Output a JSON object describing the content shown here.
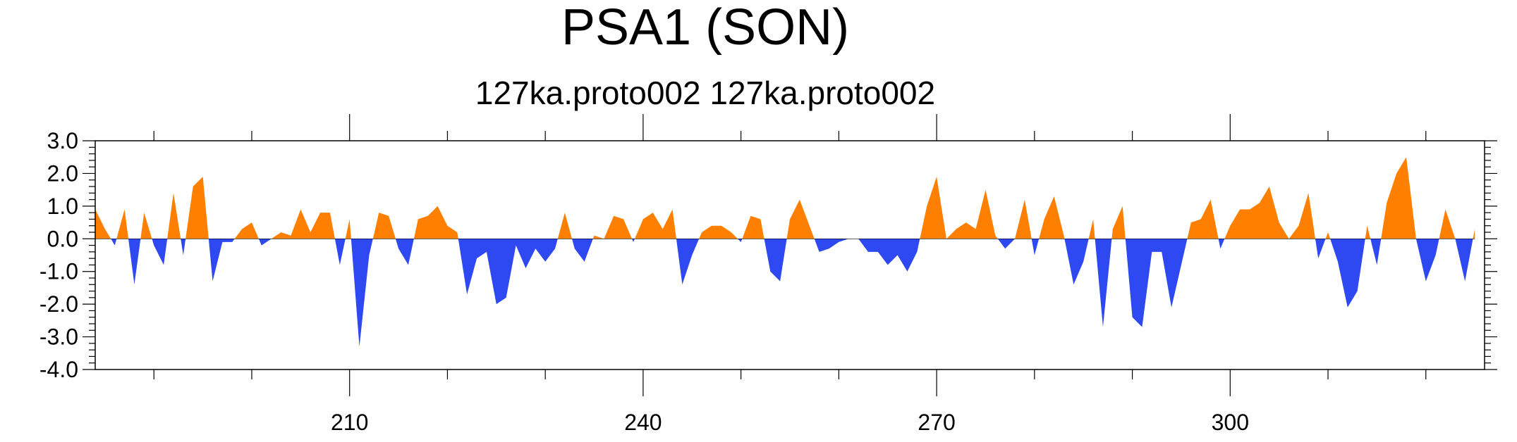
{
  "chart_data": {
    "type": "area",
    "title": "PSA1 (SON)",
    "subtitle": "127ka.proto002  127ka.proto002",
    "xlabel": "",
    "ylabel": "",
    "xlim": [
      184,
      326
    ],
    "ylim": [
      -4.0,
      3.0
    ],
    "x_ticks": [
      210,
      240,
      270,
      300
    ],
    "x_tick_labels": [
      "210",
      "240",
      "270",
      "300"
    ],
    "y_ticks": [
      3.0,
      2.0,
      1.0,
      0.0,
      -1.0,
      -2.0,
      -3.0,
      -4.0
    ],
    "y_tick_labels": [
      "3.0",
      "2.0",
      "1.0",
      "0.0",
      "-1.0",
      "-2.0",
      "-3.0",
      "-4.0"
    ],
    "positive_color": "#ff8000",
    "negative_color": "#2f49f2",
    "x_start": 184,
    "x_step": 1,
    "values": [
      0.9,
      0.3,
      -0.2,
      0.9,
      -1.4,
      0.8,
      -0.2,
      -0.8,
      1.4,
      -0.5,
      1.6,
      1.9,
      -1.3,
      -0.1,
      -0.1,
      0.3,
      0.5,
      -0.2,
      0.0,
      0.2,
      0.1,
      0.9,
      0.2,
      0.8,
      0.8,
      -0.8,
      0.6,
      -3.3,
      -0.5,
      0.8,
      0.7,
      -0.3,
      -0.8,
      0.6,
      0.7,
      1.0,
      0.4,
      0.2,
      -1.7,
      -0.6,
      -0.4,
      -2.0,
      -1.8,
      -0.2,
      -0.9,
      -0.3,
      -0.7,
      -0.3,
      0.8,
      -0.3,
      -0.7,
      0.1,
      0.0,
      0.7,
      0.6,
      -0.1,
      0.6,
      0.8,
      0.3,
      0.9,
      -1.4,
      -0.5,
      0.2,
      0.4,
      0.4,
      0.2,
      -0.1,
      0.7,
      0.6,
      -1.0,
      -1.3,
      0.6,
      1.2,
      0.4,
      -0.4,
      -0.3,
      -0.1,
      0.0,
      0.0,
      -0.4,
      -0.4,
      -0.8,
      -0.5,
      -1.0,
      -0.4,
      1.0,
      1.9,
      0.0,
      0.3,
      0.5,
      0.3,
      1.5,
      0.1,
      -0.3,
      0.0,
      1.2,
      -0.5,
      0.6,
      1.3,
      0.1,
      -1.4,
      -0.7,
      0.6,
      -2.7,
      0.3,
      1.0,
      -2.4,
      -2.7,
      -0.4,
      -0.4,
      -2.1,
      -0.8,
      0.5,
      0.6,
      1.2,
      -0.3,
      0.4,
      0.9,
      0.9,
      1.1,
      1.6,
      0.5,
      0.0,
      0.4,
      1.4,
      -0.6,
      0.2,
      -0.7,
      -2.1,
      -1.6,
      0.4,
      -0.8,
      1.1,
      2.0,
      2.5,
      0.0,
      -1.3,
      -0.5,
      0.9,
      0.0,
      -1.3,
      0.3
    ]
  }
}
